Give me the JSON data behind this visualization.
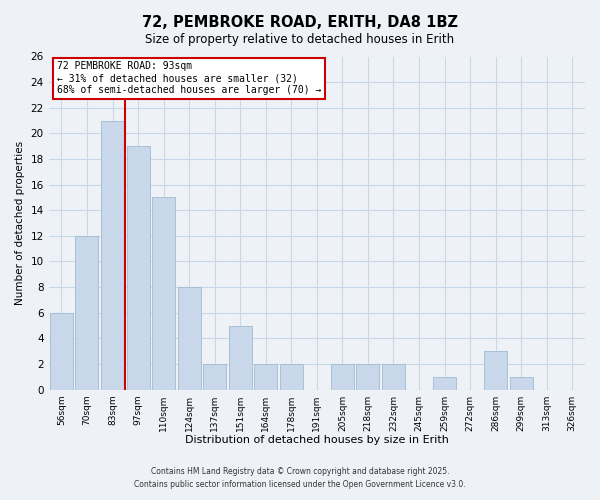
{
  "title": "72, PEMBROKE ROAD, ERITH, DA8 1BZ",
  "subtitle": "Size of property relative to detached houses in Erith",
  "xlabel": "Distribution of detached houses by size in Erith",
  "ylabel": "Number of detached properties",
  "bin_labels": [
    "56sqm",
    "70sqm",
    "83sqm",
    "97sqm",
    "110sqm",
    "124sqm",
    "137sqm",
    "151sqm",
    "164sqm",
    "178sqm",
    "191sqm",
    "205sqm",
    "218sqm",
    "232sqm",
    "245sqm",
    "259sqm",
    "272sqm",
    "286sqm",
    "299sqm",
    "313sqm",
    "326sqm"
  ],
  "bar_values": [
    6,
    12,
    21,
    19,
    15,
    8,
    2,
    5,
    2,
    2,
    0,
    2,
    2,
    2,
    0,
    1,
    0,
    3,
    1,
    0,
    0
  ],
  "bar_color": "#c8d8ea",
  "bar_edge_color": "#a8c0d4",
  "grid_color": "#c8d8e8",
  "background_color": "#eef2f7",
  "vline_color": "#cc0000",
  "vline_x": 2.5,
  "annotation_line1": "72 PEMBROKE ROAD: 93sqm",
  "annotation_line2": "← 31% of detached houses are smaller (32)",
  "annotation_line3": "68% of semi-detached houses are larger (70) →",
  "ylim": [
    0,
    26
  ],
  "yticks": [
    0,
    2,
    4,
    6,
    8,
    10,
    12,
    14,
    16,
    18,
    20,
    22,
    24,
    26
  ],
  "footnote1": "Contains HM Land Registry data © Crown copyright and database right 2025.",
  "footnote2": "Contains public sector information licensed under the Open Government Licence v3.0."
}
